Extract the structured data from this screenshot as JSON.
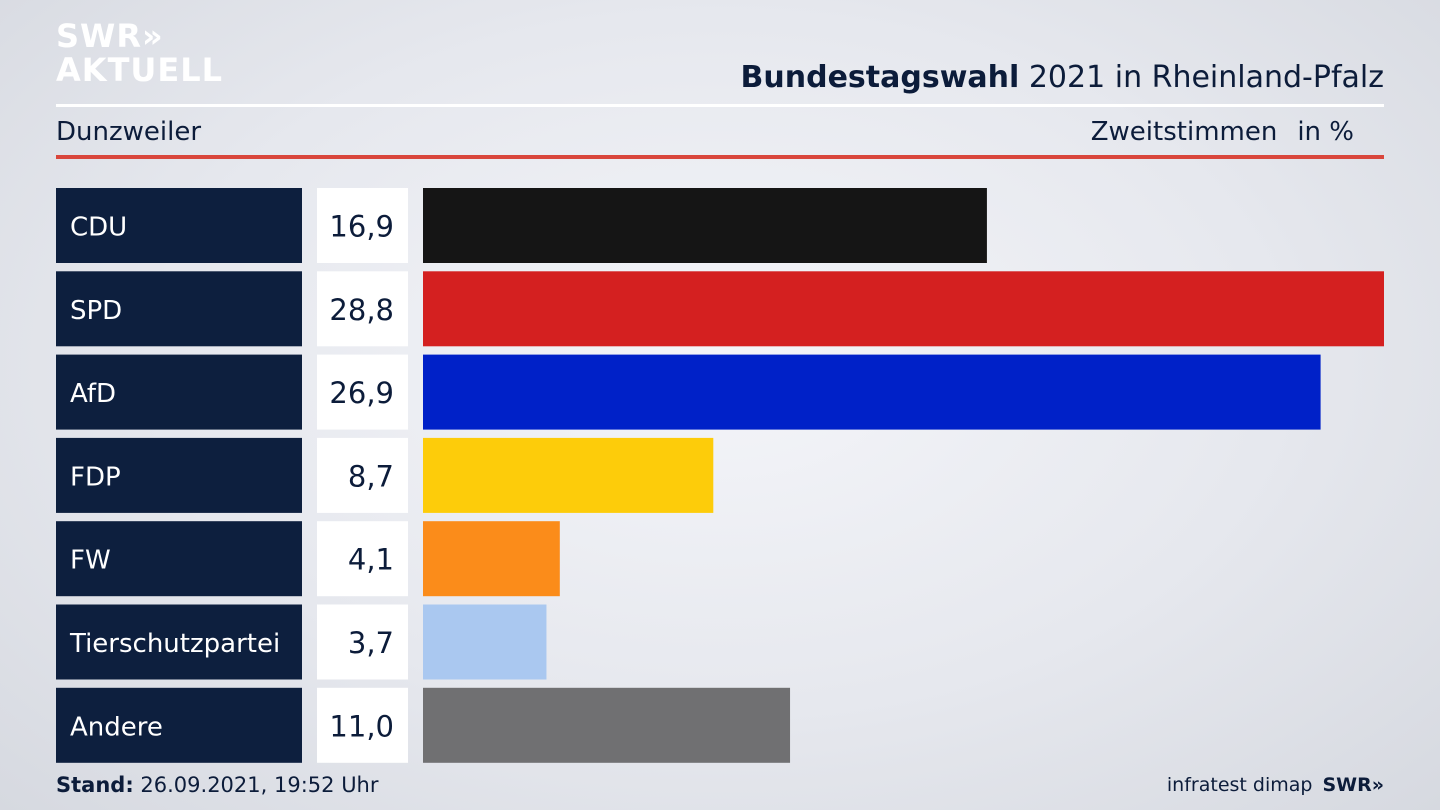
{
  "brand": {
    "logo_line1": "SWR»",
    "logo_line2": "AKTUELL"
  },
  "header": {
    "title_bold": "Bundestagswahl",
    "title_rest": "2021 in Rheinland-Pfalz",
    "region": "Dunzweiler",
    "vote_type": "Zweitstimmen",
    "unit": "in %"
  },
  "footer": {
    "stand_label": "Stand:",
    "stand_value": "26.09.2021, 19:52 Uhr",
    "source": "infratest dimap",
    "source_logo": "SWR»"
  },
  "chart_data": {
    "type": "bar",
    "orientation": "horizontal",
    "categories": [
      "CDU",
      "SPD",
      "AfD",
      "FDP",
      "FW",
      "Tierschutzpartei",
      "Andere"
    ],
    "values": [
      16.9,
      28.8,
      26.9,
      8.7,
      4.1,
      3.7,
      11.0
    ],
    "value_labels": [
      "16,9",
      "28,8",
      "26,9",
      "8,7",
      "4,1",
      "3,7",
      "11,0"
    ],
    "colors": [
      "#151515",
      "#d42020",
      "#0021c8",
      "#fdcc0a",
      "#fb8c1a",
      "#aac8f0",
      "#707072"
    ],
    "xlim": [
      0,
      28.8
    ],
    "grid": false,
    "legend": "none"
  },
  "colors": {
    "label_bg": "#0d1f3e",
    "value_bg": "#ffffff",
    "text": "#0c1c3a",
    "accent_rule": "#d9463c"
  }
}
